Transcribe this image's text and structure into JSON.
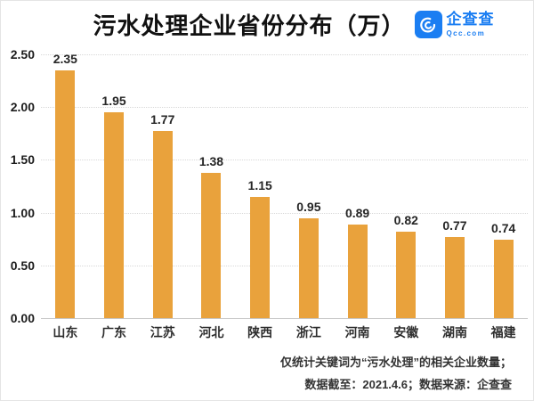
{
  "header": {
    "title": "污水处理企业省份分布（万）",
    "logo": {
      "icon": "qcc-swirl-icon",
      "brand": "企查查",
      "domain": "Qcc.com",
      "color": "#1B7EF2"
    }
  },
  "chart_data": {
    "type": "bar",
    "title": "污水处理企业省份分布（万）",
    "categories": [
      "山东",
      "广东",
      "江苏",
      "河北",
      "陕西",
      "浙江",
      "河南",
      "安徽",
      "湖南",
      "福建"
    ],
    "values": [
      2.35,
      1.95,
      1.77,
      1.38,
      1.15,
      0.95,
      0.89,
      0.82,
      0.77,
      0.74
    ],
    "xlabel": "",
    "ylabel": "",
    "ylim": [
      0,
      2.5
    ],
    "yticks": [
      "2.50",
      "2.00",
      "1.50",
      "1.00",
      "0.50",
      "0.00"
    ],
    "ytick_values": [
      2.5,
      2.0,
      1.5,
      1.0,
      0.5,
      0.0
    ],
    "grid": "horizontal-dotted",
    "legend": "none",
    "bar_color": "#E9A23C"
  },
  "footer": {
    "line1": "仅统计关键词为“污水处理”的相关企业数量；",
    "line2": "数据截至：2021.4.6；数据来源：企查查"
  }
}
